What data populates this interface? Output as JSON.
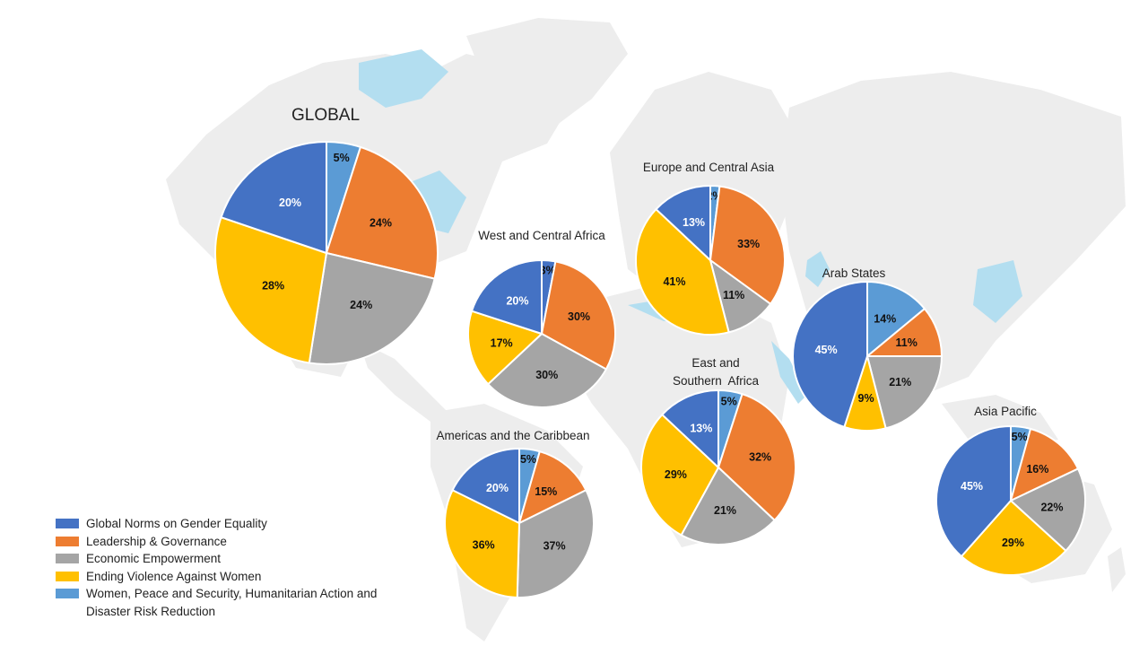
{
  "colors": {
    "norms": "#4472C4",
    "leadership": "#ED7D31",
    "economic": "#A5A5A5",
    "evaw": "#FFC000",
    "wps": "#5B9BD5",
    "map_land": "#EDEDED",
    "map_water": "#B3DEF0"
  },
  "legend": [
    {
      "key": "norms",
      "label": "Global Norms on Gender Equality"
    },
    {
      "key": "leadership",
      "label": "Leadership & Governance"
    },
    {
      "key": "economic",
      "label": "Economic Empowerment"
    },
    {
      "key": "evaw",
      "label": "Ending Violence Against Women"
    },
    {
      "key": "wps",
      "label": "Women, Peace and Security, Humanitarian Action and Disaster Risk Reduction"
    }
  ],
  "chart_data": [
    {
      "type": "pie",
      "title": "GLOBAL",
      "slices": [
        {
          "key": "wps",
          "value": 5,
          "label": "5%"
        },
        {
          "key": "leadership",
          "value": 24,
          "label": "24%"
        },
        {
          "key": "economic",
          "value": 24,
          "label": "24%"
        },
        {
          "key": "evaw",
          "value": 28,
          "label": "28%"
        },
        {
          "key": "norms",
          "value": 20,
          "label": "20%"
        }
      ]
    },
    {
      "type": "pie",
      "title": "West and Central Africa",
      "slices": [
        {
          "key": "norms",
          "value": 3,
          "label": "3%"
        },
        {
          "key": "leadership",
          "value": 30,
          "label": "30%"
        },
        {
          "key": "economic",
          "value": 30,
          "label": "30%"
        },
        {
          "key": "evaw",
          "value": 17,
          "label": "17%"
        },
        {
          "key": "norms",
          "value": 20,
          "label": "20%"
        }
      ]
    },
    {
      "type": "pie",
      "title": "Europe and Central Asia",
      "slices": [
        {
          "key": "wps",
          "value": 2,
          "label": "2%"
        },
        {
          "key": "leadership",
          "value": 33,
          "label": "33%"
        },
        {
          "key": "economic",
          "value": 11,
          "label": "11%"
        },
        {
          "key": "evaw",
          "value": 41,
          "label": "41%"
        },
        {
          "key": "norms",
          "value": 13,
          "label": "13%"
        }
      ]
    },
    {
      "type": "pie",
      "title": "Arab States",
      "slices": [
        {
          "key": "wps",
          "value": 14,
          "label": "14%"
        },
        {
          "key": "leadership",
          "value": 11,
          "label": "11%"
        },
        {
          "key": "economic",
          "value": 21,
          "label": "21%"
        },
        {
          "key": "evaw",
          "value": 9,
          "label": "9%"
        },
        {
          "key": "norms",
          "value": 45,
          "label": "45%"
        }
      ]
    },
    {
      "type": "pie",
      "title": "East and Southern  Africa",
      "title_lines": [
        "East and",
        "Southern  Africa"
      ],
      "slices": [
        {
          "key": "wps",
          "value": 5,
          "label": "5%"
        },
        {
          "key": "leadership",
          "value": 32,
          "label": "32%"
        },
        {
          "key": "economic",
          "value": 21,
          "label": "21%"
        },
        {
          "key": "evaw",
          "value": 29,
          "label": "29%"
        },
        {
          "key": "norms",
          "value": 13,
          "label": "13%"
        }
      ]
    },
    {
      "type": "pie",
      "title": "Americas and the Caribbean",
      "slices": [
        {
          "key": "wps",
          "value": 5,
          "label": "5%"
        },
        {
          "key": "leadership",
          "value": 15,
          "label": "15%"
        },
        {
          "key": "economic",
          "value": 37,
          "label": "37%"
        },
        {
          "key": "evaw",
          "value": 36,
          "label": "36%"
        },
        {
          "key": "norms",
          "value": 20,
          "label": "20%"
        }
      ]
    },
    {
      "type": "pie",
      "title": "Asia Pacific",
      "slices": [
        {
          "key": "wps",
          "value": 5,
          "label": "5%"
        },
        {
          "key": "leadership",
          "value": 16,
          "label": "16%"
        },
        {
          "key": "economic",
          "value": 22,
          "label": "22%"
        },
        {
          "key": "evaw",
          "value": 29,
          "label": "29%"
        },
        {
          "key": "norms",
          "value": 45,
          "label": "45%"
        }
      ]
    }
  ]
}
